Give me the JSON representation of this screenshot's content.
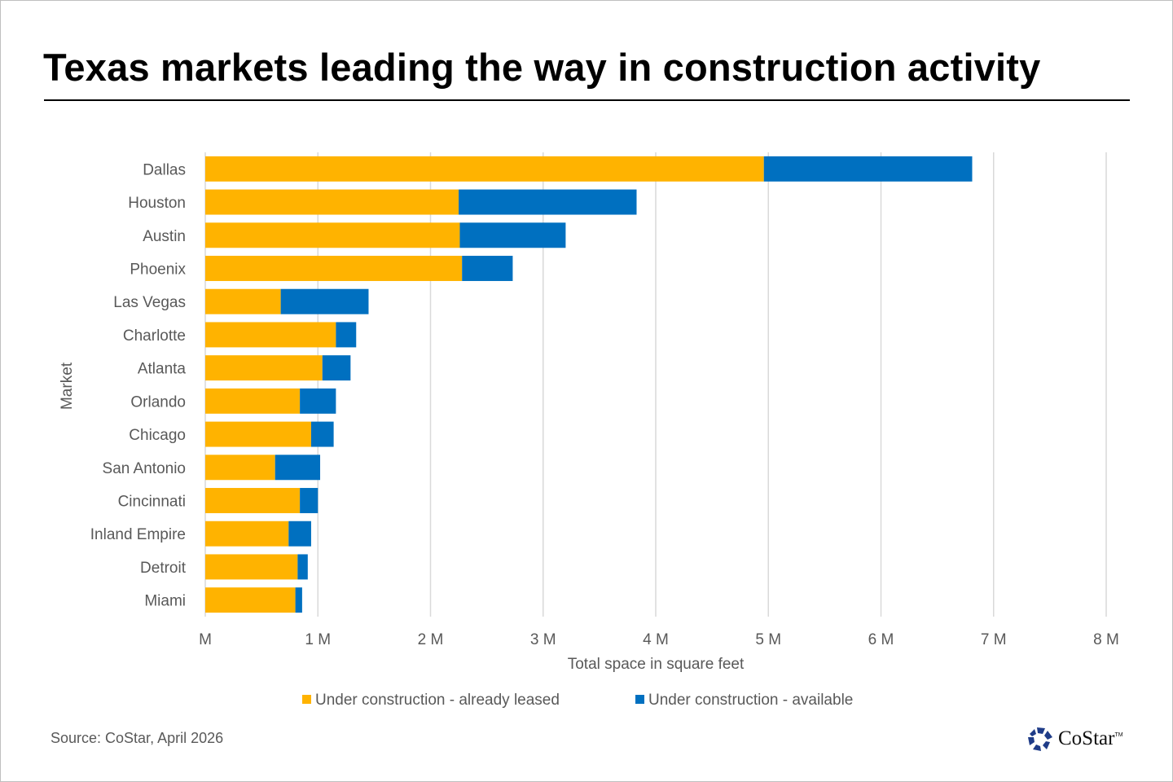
{
  "title": "Texas markets leading the way in construction activity",
  "source": "Source: CoStar, April 2026",
  "logo": {
    "text": "CoStar",
    "tm": "TM"
  },
  "chart_data": {
    "type": "bar",
    "orientation": "horizontal",
    "stacked": true,
    "xlabel": "Total space in square feet",
    "ylabel": "Market",
    "xlim": [
      0,
      8
    ],
    "x_ticks": [
      "M",
      "1 M",
      "2 M",
      "3 M",
      "4 M",
      "5 M",
      "6 M",
      "7 M",
      "8 M"
    ],
    "grid": "vertical",
    "legend_position": "bottom",
    "categories": [
      "Dallas",
      "Houston",
      "Austin",
      "Phoenix",
      "Las Vegas",
      "Charlotte",
      "Atlanta",
      "Orlando",
      "Chicago",
      "San Antonio",
      "Cincinnati",
      "Inland Empire",
      "Detroit",
      "Miami"
    ],
    "series": [
      {
        "name": "Under construction - already leased",
        "color": "#FFB300",
        "values": [
          4.96,
          2.25,
          2.26,
          2.28,
          0.67,
          1.16,
          1.04,
          0.84,
          0.94,
          0.62,
          0.84,
          0.74,
          0.82,
          0.8
        ]
      },
      {
        "name": "Under construction - available",
        "color": "#0070C0",
        "values": [
          1.85,
          1.58,
          0.94,
          0.45,
          0.78,
          0.18,
          0.25,
          0.32,
          0.2,
          0.4,
          0.16,
          0.2,
          0.09,
          0.06
        ]
      }
    ]
  }
}
